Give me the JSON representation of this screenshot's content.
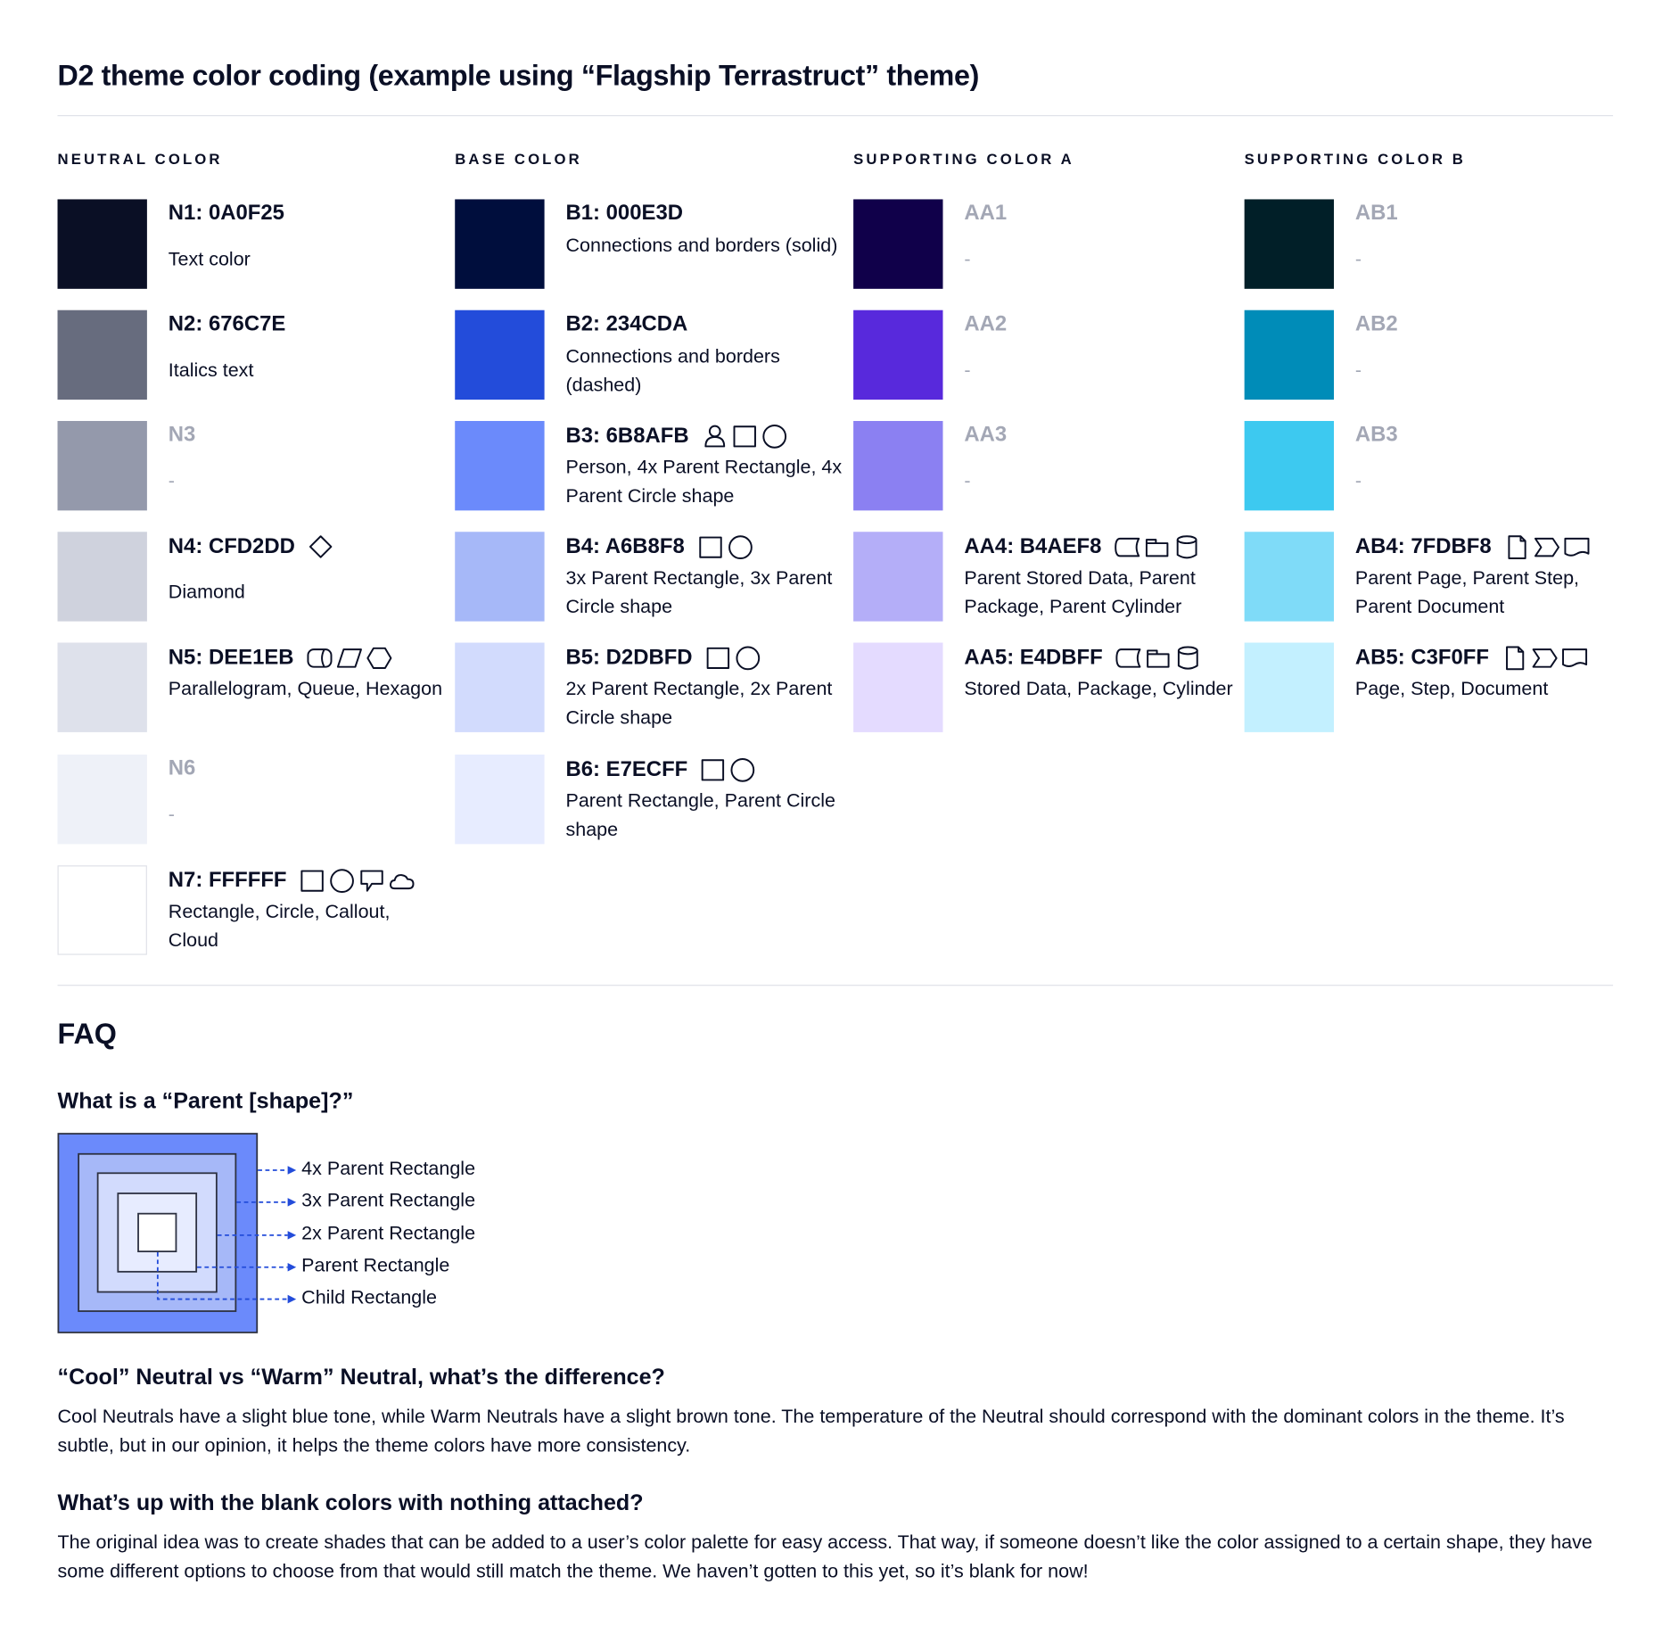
{
  "title": "D2 theme color coding (example using “Flagship Terrastruct” theme)",
  "columns": [
    {
      "header": "NEUTRAL COLOR",
      "items": [
        {
          "label": "N1: 0A0F25",
          "desc": "Text color",
          "color": "#0A0F25",
          "icons": []
        },
        {
          "label": "N2: 676C7E",
          "desc": "Italics text",
          "color": "#676C7E",
          "icons": []
        },
        {
          "label": "N3",
          "desc": "-",
          "color": "#9499AB",
          "icons": [],
          "muted": true
        },
        {
          "label": "N4: CFD2DD",
          "desc": "Diamond",
          "color": "#CFD2DD",
          "icons": [
            "diamond"
          ]
        },
        {
          "label": "N5: DEE1EB",
          "desc": "Parallelogram, Queue, Hexagon",
          "color": "#DEE1EB",
          "icons": [
            "queue",
            "parallelogram",
            "hexagon"
          ]
        },
        {
          "label": "N6",
          "desc": "-",
          "color": "#EEF1F8",
          "icons": [],
          "muted": true
        },
        {
          "label": "N7: FFFFFF",
          "desc": "Rectangle, Circle, Callout, Cloud",
          "color": "#FFFFFF",
          "icons": [
            "rectangle",
            "circle",
            "callout",
            "cloud"
          ]
        }
      ]
    },
    {
      "header": "BASE COLOR",
      "items": [
        {
          "label": "B1: 000E3D",
          "desc": "Connections and borders (solid)",
          "color": "#000E3D",
          "icons": []
        },
        {
          "label": "B2: 234CDA",
          "desc": "Connections and borders (dashed)",
          "color": "#234CDA",
          "icons": []
        },
        {
          "label": "B3: 6B8AFB",
          "desc": "Person, 4x Parent Rectangle, 4x Parent Circle shape",
          "color": "#6B8AFB",
          "icons": [
            "person",
            "rectangle",
            "circle"
          ]
        },
        {
          "label": "B4: A6B8F8",
          "desc": "3x Parent Rectangle, 3x Parent Circle shape",
          "color": "#A6B8F8",
          "icons": [
            "rectangle",
            "circle"
          ]
        },
        {
          "label": "B5: D2DBFD",
          "desc": "2x Parent Rectangle, 2x Parent Circle shape",
          "color": "#D2DBFD",
          "icons": [
            "rectangle",
            "circle"
          ]
        },
        {
          "label": "B6: E7ECFF",
          "desc": "Parent Rectangle, Parent Circle shape",
          "color": "#E7ECFF",
          "icons": [
            "rectangle",
            "circle"
          ]
        }
      ]
    },
    {
      "header": "SUPPORTING COLOR A",
      "items": [
        {
          "label": "AA1",
          "desc": "-",
          "color": "#10004A",
          "icons": [],
          "muted": true
        },
        {
          "label": "AA2",
          "desc": "-",
          "color": "#5829DC",
          "icons": [],
          "muted": true
        },
        {
          "label": "AA3",
          "desc": "-",
          "color": "#8B80F2",
          "icons": [],
          "muted": true
        },
        {
          "label": "AA4: B4AEF8",
          "desc": "Parent Stored Data, Parent Package,  Parent Cylinder",
          "color": "#B4AEF8",
          "icons": [
            "stored-data",
            "package",
            "cylinder"
          ]
        },
        {
          "label": "AA5: E4DBFF",
          "desc": "Stored Data, Package, Cylinder",
          "color": "#E4DBFF",
          "icons": [
            "stored-data",
            "package",
            "cylinder"
          ]
        }
      ]
    },
    {
      "header": "SUPPORTING COLOR B",
      "items": [
        {
          "label": "AB1",
          "desc": "-",
          "color": "#011F28",
          "icons": [],
          "muted": true
        },
        {
          "label": "AB2",
          "desc": "-",
          "color": "#008CB8",
          "icons": [],
          "muted": true
        },
        {
          "label": "AB3",
          "desc": "-",
          "color": "#3DC9F0",
          "icons": [],
          "muted": true
        },
        {
          "label": "AB4: 7FDBF8",
          "desc": "Parent Page, Parent Step, Parent Document",
          "color": "#7FDBF8",
          "icons": [
            "page",
            "step",
            "document"
          ]
        },
        {
          "label": "AB5: C3F0FF",
          "desc": "Page, Step, Document",
          "color": "#C3F0FF",
          "icons": [
            "page",
            "step",
            "document"
          ]
        }
      ]
    }
  ],
  "faq": {
    "title": "FAQ",
    "q1": "What is a “Parent [shape]?”",
    "diagram_labels": [
      "4x Parent Rectangle",
      "3x Parent Rectangle",
      "2x Parent Rectangle",
      "Parent Rectangle",
      "Child Rectangle"
    ],
    "diagram_colors": [
      "#6B8AFB",
      "#A6B8F8",
      "#D2DBFD",
      "#E7ECFF",
      "#FFFFFF"
    ],
    "arrow_color": "#234CDA",
    "q2": "“Cool” Neutral vs “Warm” Neutral, what’s the difference?",
    "a2": "Cool Neutrals have a slight blue tone, while Warm Neutrals have a slight brown tone. The temperature of the Neutral should correspond with the dominant colors in the theme. It’s subtle, but in our opinion, it helps the theme colors have more consistency.",
    "q3": "What’s up with the blank colors with nothing attached?",
    "a3": "The original idea was to create shades that can be added to a user’s color palette for easy access. That way, if someone doesn’t like the color assigned to a certain shape, they have some different options to choose from that would still match the theme. We haven’t gotten to this yet, so it’s blank for now!"
  }
}
